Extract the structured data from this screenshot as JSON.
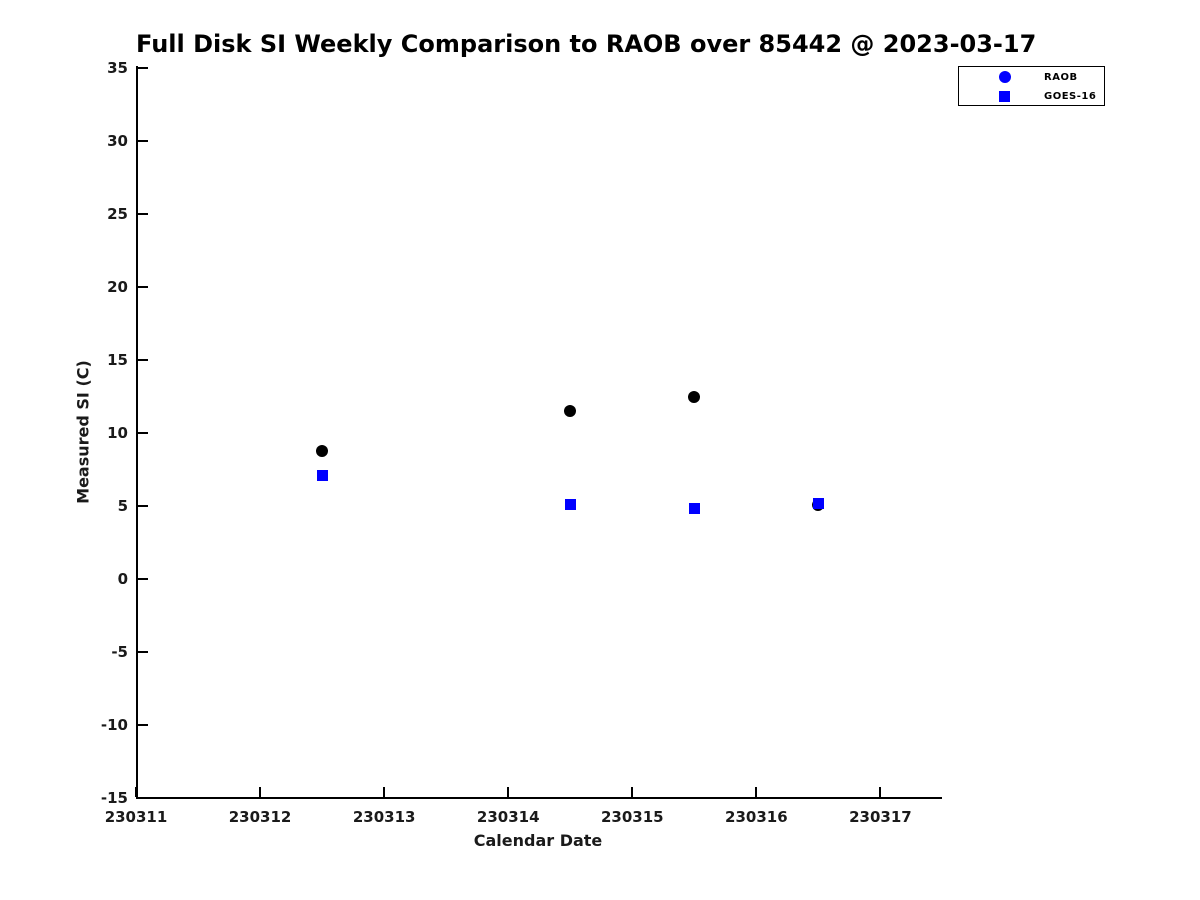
{
  "chart_data": {
    "type": "scatter",
    "title": "Full Disk SI Weekly Comparison to RAOB over 85442 @ 2023-03-17",
    "xlabel": "Calendar Date",
    "ylabel": "Measured SI (C)",
    "xlim": [
      230311,
      230317.48
    ],
    "ylim": [
      -15,
      35
    ],
    "xticks": [
      230311,
      230312,
      230313,
      230314,
      230315,
      230316,
      230317
    ],
    "yticks": [
      -15,
      -10,
      -5,
      0,
      5,
      10,
      15,
      20,
      25,
      30,
      35
    ],
    "grid": false,
    "legend_position": "outside-top-right",
    "background_color": "#ffffff",
    "axis_color": "#000000",
    "series": [
      {
        "name": "RAOB",
        "marker": "circle",
        "plot_color": "#000000",
        "legend_color": "#0000ff",
        "points": [
          {
            "x": 230312.5,
            "y": 8.8
          },
          {
            "x": 230314.5,
            "y": 11.5
          },
          {
            "x": 230315.5,
            "y": 12.5
          },
          {
            "x": 230316.5,
            "y": 5.1
          }
        ]
      },
      {
        "name": "GOES-16",
        "marker": "square",
        "plot_color": "#0000ff",
        "legend_color": "#0000ff",
        "points": [
          {
            "x": 230312.5,
            "y": 7.1
          },
          {
            "x": 230314.5,
            "y": 5.1
          },
          {
            "x": 230315.5,
            "y": 4.8
          },
          {
            "x": 230316.5,
            "y": 5.2
          }
        ]
      }
    ]
  }
}
